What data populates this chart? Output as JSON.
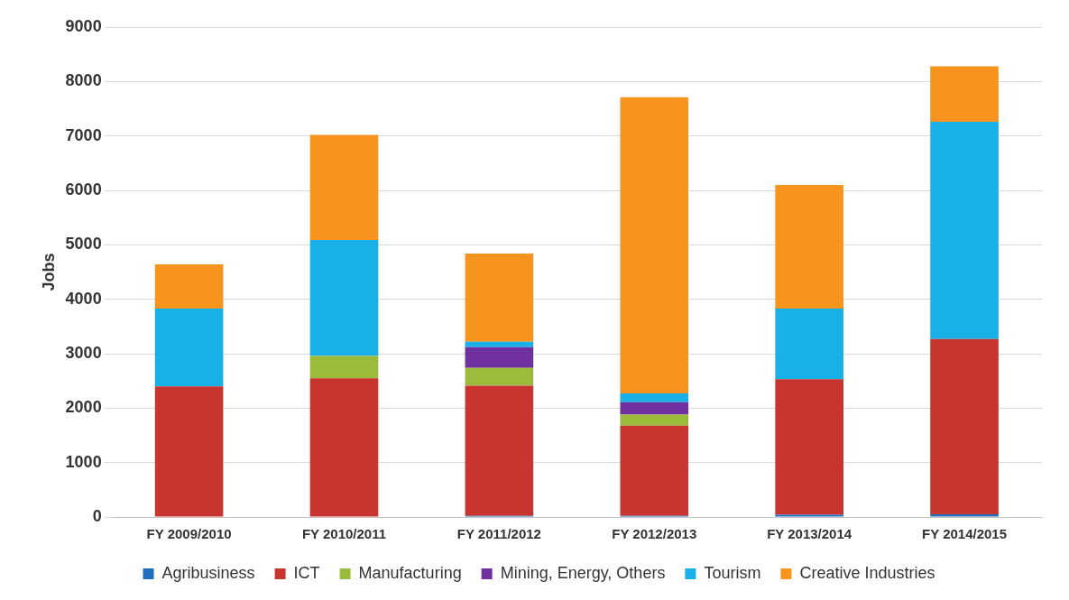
{
  "chart_data": {
    "type": "bar",
    "stacked": true,
    "ylabel": "Jobs",
    "categories": [
      "FY 2009/2010",
      "FY 2010/2011",
      "FY 2011/2012",
      "FY 2012/2013",
      "FY 2013/2014",
      "FY 2014/2015"
    ],
    "series": [
      {
        "name": "Agribusiness",
        "color": "#1f6fbf",
        "values": [
          0,
          0,
          20,
          20,
          40,
          50
        ]
      },
      {
        "name": "ICT",
        "color": "#c8352f",
        "values": [
          2400,
          2550,
          2390,
          1660,
          2490,
          3220
        ]
      },
      {
        "name": "Manufacturing",
        "color": "#9bbb3a",
        "values": [
          0,
          410,
          330,
          200,
          0,
          0
        ]
      },
      {
        "name": "Mining, Energy, Others",
        "color": "#7030a0",
        "values": [
          0,
          0,
          380,
          230,
          0,
          0
        ]
      },
      {
        "name": "Tourism",
        "color": "#19b0e8",
        "values": [
          1430,
          2130,
          100,
          160,
          1300,
          3990
        ]
      },
      {
        "name": "Creative Industries",
        "color": "#f7941d",
        "values": [
          810,
          1930,
          1620,
          5440,
          2270,
          1020
        ]
      }
    ],
    "ylim": [
      0,
      9000
    ],
    "yticks": [
      0,
      1000,
      2000,
      3000,
      4000,
      5000,
      6000,
      7000,
      8000,
      9000
    ],
    "grid": "y",
    "legend": "bottom"
  }
}
